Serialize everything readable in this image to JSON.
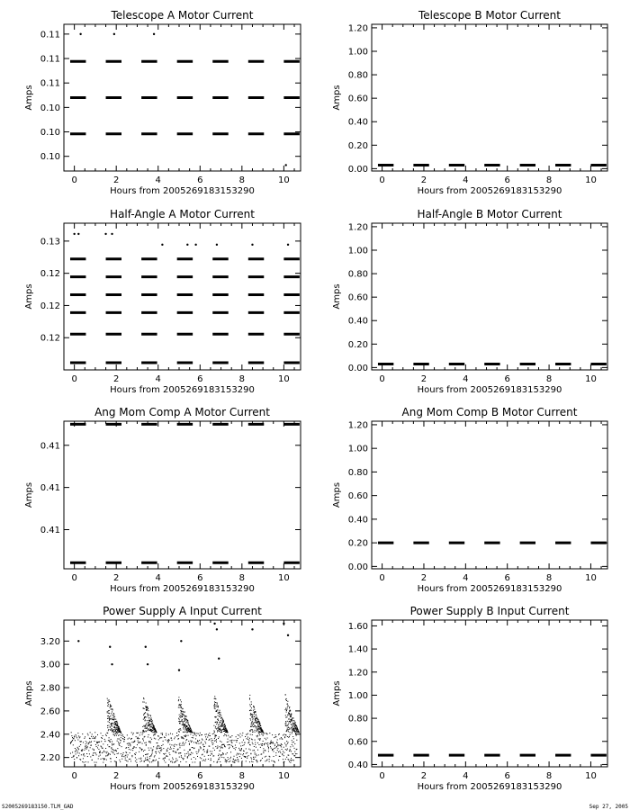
{
  "footer": {
    "file": "S2005269183150.TLM_GAD",
    "date": "Sep 27, 2005"
  },
  "chart_data": [
    {
      "type": "scatter",
      "title": "Telescope A Motor Current",
      "xlabel": "Hours from 2005269183153290",
      "ylabel": "Amps",
      "xlim": [
        -0.5,
        10.8
      ],
      "xticks": [
        0,
        2,
        4,
        6,
        8,
        10
      ],
      "ylim": [
        0.0965,
        0.1115
      ],
      "yticks": [
        0.098,
        0.1005,
        0.103,
        0.1055,
        0.108,
        0.1105
      ],
      "yticklabels": [
        "0.10",
        "0.10",
        "0.10",
        "0.11",
        "0.11",
        "0.11"
      ],
      "bands": [
        0.1003,
        0.104,
        0.1077
      ],
      "outliers": [
        [
          0.3,
          0.1105
        ],
        [
          1.9,
          0.1105
        ],
        [
          3.8,
          0.1105
        ],
        [
          10.1,
          0.0971
        ]
      ]
    },
    {
      "type": "scatter",
      "title": "Telescope B Motor Current",
      "xlabel": "Hours from 2005269183153290",
      "ylabel": "Amps",
      "xlim": [
        -0.5,
        10.8
      ],
      "xticks": [
        0,
        2,
        4,
        6,
        8,
        10
      ],
      "ylim": [
        -0.02,
        1.23
      ],
      "yticks": [
        0.0,
        0.2,
        0.4,
        0.6,
        0.8,
        1.0,
        1.2
      ],
      "yticklabels": [
        "0.00",
        "0.20",
        "0.40",
        "0.60",
        "0.80",
        "1.00",
        "1.20"
      ],
      "bands": [
        0.03
      ],
      "outliers": []
    },
    {
      "type": "scatter",
      "title": "Half-Angle A Motor Current",
      "xlabel": "Hours from 2005269183153290",
      "ylabel": "Amps",
      "xlim": [
        -0.5,
        10.8
      ],
      "xticks": [
        0,
        2,
        4,
        6,
        8,
        10
      ],
      "ylim": [
        0.1135,
        0.134
      ],
      "yticks": [
        0.118,
        0.1225,
        0.127,
        0.1315
      ],
      "yticklabels": [
        "0.12",
        "0.12",
        "0.12",
        "0.13"
      ],
      "bands": [
        0.1145,
        0.1185,
        0.1215,
        0.124,
        0.1265,
        0.129
      ],
      "outliers": [
        [
          0.0,
          0.1325
        ],
        [
          0.2,
          0.1325
        ],
        [
          1.5,
          0.1325
        ],
        [
          1.8,
          0.1325
        ],
        [
          4.2,
          0.131
        ],
        [
          5.4,
          0.131
        ],
        [
          5.8,
          0.131
        ],
        [
          6.8,
          0.131
        ],
        [
          8.5,
          0.131
        ],
        [
          10.2,
          0.131
        ]
      ]
    },
    {
      "type": "scatter",
      "title": "Half-Angle B Motor Current",
      "xlabel": "Hours from 2005269183153290",
      "ylabel": "Amps",
      "xlim": [
        -0.5,
        10.8
      ],
      "xticks": [
        0,
        2,
        4,
        6,
        8,
        10
      ],
      "ylim": [
        -0.02,
        1.23
      ],
      "yticks": [
        0.0,
        0.2,
        0.4,
        0.6,
        0.8,
        1.0,
        1.2
      ],
      "yticklabels": [
        "0.00",
        "0.20",
        "0.40",
        "0.60",
        "0.80",
        "1.00",
        "1.20"
      ],
      "bands": [
        0.03
      ],
      "outliers": []
    },
    {
      "type": "scatter",
      "title": "Ang Mom Comp A Motor Current",
      "xlabel": "Hours from 2005269183153290",
      "ylabel": "Amps",
      "xlim": [
        -0.5,
        10.8
      ],
      "xticks": [
        0,
        2,
        4,
        6,
        8,
        10
      ],
      "ylim": [
        0.4075,
        0.4124
      ],
      "yticks": [
        0.4088,
        0.4102,
        0.4116
      ],
      "yticklabels": [
        "0.41",
        "0.41",
        "0.41"
      ],
      "bands": [
        0.4077,
        0.4123
      ],
      "outliers": []
    },
    {
      "type": "scatter",
      "title": "Ang Mom Comp B Motor Current",
      "xlabel": "Hours from 2005269183153290",
      "ylabel": "Amps",
      "xlim": [
        -0.5,
        10.8
      ],
      "xticks": [
        0,
        2,
        4,
        6,
        8,
        10
      ],
      "ylim": [
        -0.02,
        1.23
      ],
      "yticks": [
        0.0,
        0.2,
        0.4,
        0.6,
        0.8,
        1.0,
        1.2
      ],
      "yticklabels": [
        "0.00",
        "0.20",
        "0.40",
        "0.60",
        "0.80",
        "1.00",
        "1.20"
      ],
      "bands": [
        0.2
      ],
      "outliers": []
    },
    {
      "type": "scatter",
      "title": "Power Supply A Input Current",
      "xlabel": "Hours from 2005269183153290",
      "ylabel": "Amps",
      "xlim": [
        -0.5,
        10.8
      ],
      "xticks": [
        0,
        2,
        4,
        6,
        8,
        10
      ],
      "ylim": [
        2.12,
        3.38
      ],
      "yticks": [
        2.2,
        2.4,
        2.6,
        2.8,
        3.0,
        3.2
      ],
      "yticklabels": [
        "2.20",
        "2.40",
        "2.60",
        "2.80",
        "3.00",
        "3.20"
      ],
      "baseline": [
        2.16,
        2.42
      ],
      "cycle_hours": [
        1.6,
        3.3,
        5.0,
        6.7,
        8.4,
        10.1
      ],
      "peaks": [
        2.75,
        2.75,
        2.75,
        2.75,
        2.75,
        2.75
      ],
      "outliers": [
        [
          1.7,
          3.15
        ],
        [
          3.4,
          3.15
        ],
        [
          5.1,
          3.2
        ],
        [
          6.8,
          3.3
        ],
        [
          8.5,
          3.3
        ],
        [
          10.2,
          3.25
        ],
        [
          0.2,
          3.2
        ],
        [
          6.7,
          3.35
        ],
        [
          10.0,
          3.35
        ],
        [
          1.8,
          3.0
        ],
        [
          3.5,
          3.0
        ],
        [
          5.0,
          2.95
        ],
        [
          6.9,
          3.05
        ]
      ]
    },
    {
      "type": "scatter",
      "title": "Power Supply B Input Current",
      "xlabel": "Hours from 2005269183153290",
      "ylabel": "Amps",
      "xlim": [
        -0.5,
        10.8
      ],
      "xticks": [
        0,
        2,
        4,
        6,
        8,
        10
      ],
      "ylim": [
        0.38,
        1.65
      ],
      "yticks": [
        0.4,
        0.6,
        0.8,
        1.0,
        1.2,
        1.4,
        1.6
      ],
      "yticklabels": [
        "0.40",
        "0.60",
        "0.80",
        "1.00",
        "1.20",
        "1.40",
        "1.60"
      ],
      "bands": [
        0.48
      ],
      "outliers": []
    }
  ]
}
